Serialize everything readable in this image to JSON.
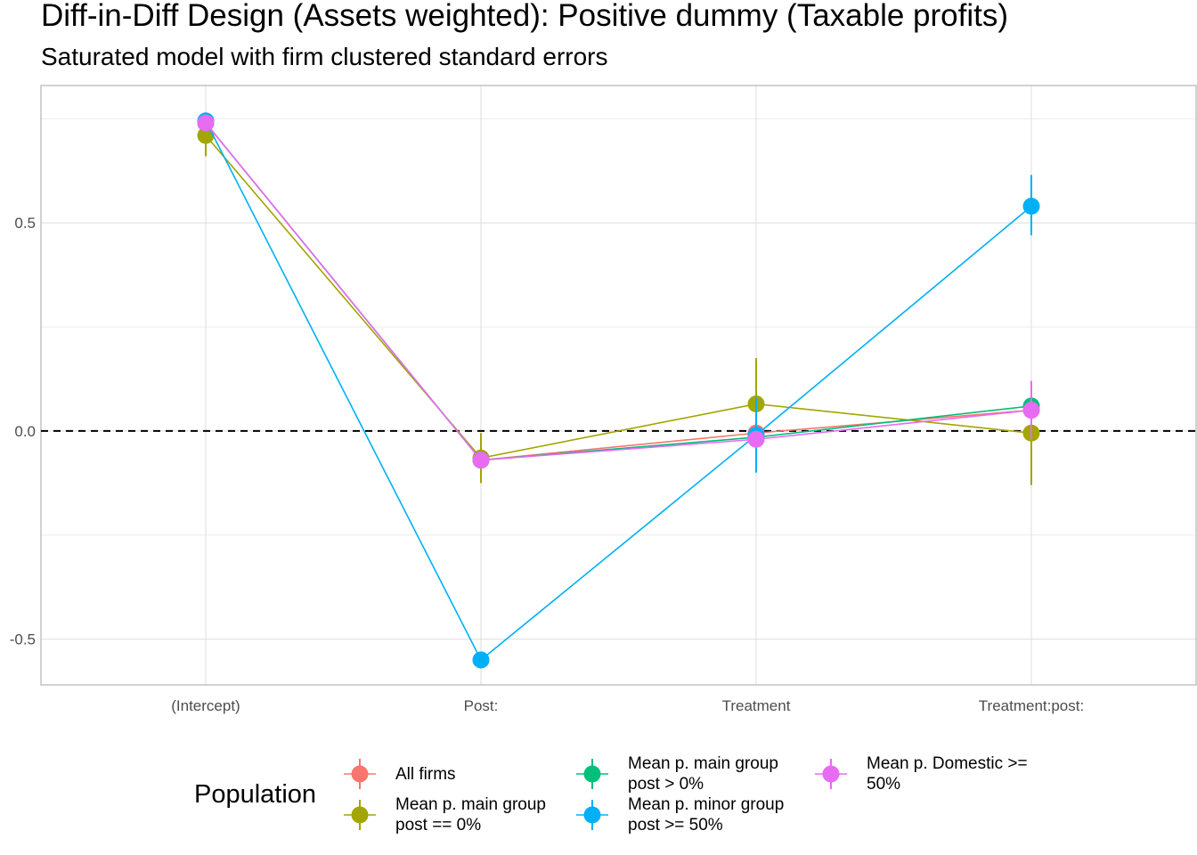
{
  "chart_data": {
    "type": "line",
    "title": "Diff-in-Diff Design (Assets weighted): Positive dummy (Taxable profits)",
    "subtitle": "Saturated model with firm clustered standard errors",
    "categories": [
      "(Intercept)",
      "Post:",
      "Treatment",
      "Treatment:post:"
    ],
    "y_ticks": [
      {
        "value": 0.5,
        "label": "0.5"
      },
      {
        "value": 0.0,
        "label": "0.0"
      },
      {
        "value": -0.5,
        "label": "-0.5"
      }
    ],
    "ylim": [
      -0.61,
      0.83
    ],
    "grid": true,
    "reference_line": {
      "y": 0,
      "style": "dashed"
    },
    "legend_title": "Population",
    "legend_position": "bottom",
    "series": [
      {
        "name": "All firms",
        "color": "#F8766D",
        "values": [
          0.74,
          -0.07,
          -0.005,
          0.05
        ],
        "lower": [
          0.72,
          -0.09,
          -0.025,
          0.03
        ],
        "upper": [
          0.76,
          -0.05,
          0.015,
          0.07
        ]
      },
      {
        "name": "Mean p. main group\npost == 0%",
        "color": "#A3A500",
        "values": [
          0.71,
          -0.065,
          0.065,
          -0.005
        ],
        "lower": [
          0.66,
          -0.125,
          -0.04,
          -0.13
        ],
        "upper": [
          0.76,
          -0.005,
          0.175,
          0.12
        ]
      },
      {
        "name": "Mean p. main group\npost > 0%",
        "color": "#00BF7D",
        "values": [
          0.74,
          -0.07,
          -0.015,
          0.06
        ],
        "lower": [
          0.72,
          -0.09,
          -0.035,
          0.04
        ],
        "upper": [
          0.76,
          -0.05,
          0.005,
          0.08
        ]
      },
      {
        "name": "Mean p. minor group\npost >= 50%",
        "color": "#00B0F6",
        "values": [
          0.745,
          -0.55,
          -0.01,
          0.54
        ],
        "lower": [
          0.735,
          -0.57,
          -0.1,
          0.47
        ],
        "upper": [
          0.755,
          -0.53,
          0.08,
          0.615
        ]
      },
      {
        "name": "Mean p. Domestic >=\n50%",
        "color": "#E76BF3",
        "values": [
          0.74,
          -0.07,
          -0.02,
          0.05
        ],
        "lower": [
          0.72,
          -0.09,
          -0.04,
          -0.02
        ],
        "upper": [
          0.76,
          -0.05,
          0.0,
          0.12
        ]
      }
    ]
  }
}
